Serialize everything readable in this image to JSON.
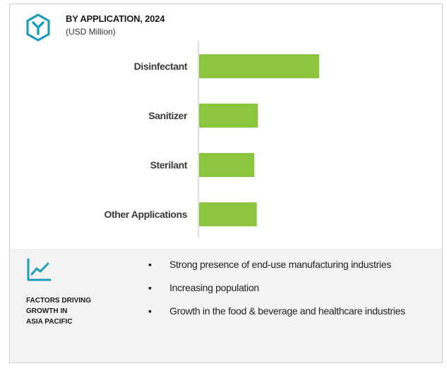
{
  "header": {
    "title": "BY APPLICATION, 2024",
    "subtitle": "(USD Million)",
    "logo_icon": "hexagon-y-logo-icon",
    "accent_color": "#1b9cb8"
  },
  "chart_data": {
    "type": "bar",
    "orientation": "horizontal",
    "categories": [
      "Disinfectant",
      "Sanitizer",
      "Sterilant",
      "Other Applications"
    ],
    "values": [
      100,
      49,
      46,
      48
    ],
    "bar_color": "#8cc63f",
    "xaxis_visible": false,
    "grid": false,
    "legend": "none"
  },
  "factors": {
    "icon": "trend-line-chart-icon",
    "heading": [
      "FACTORS DRIVING",
      "GROWTH IN",
      "ASIA PACIFIC"
    ],
    "items": [
      "Strong presence of end-use manufacturing industries",
      "Increasing population",
      "Growth in the food & beverage and healthcare industries"
    ]
  }
}
